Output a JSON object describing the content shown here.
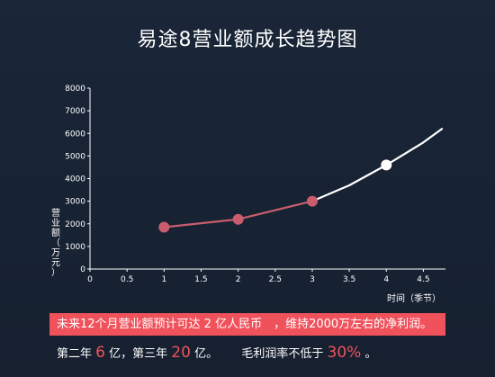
{
  "title": "易途8营业额成长趋势图",
  "chart_data": {
    "type": "line",
    "title": "易途8营业额成长趋势图",
    "xlabel": "时间（季节）",
    "ylabel": "营业额（万元）",
    "xlim": [
      0,
      4.75
    ],
    "ylim": [
      0,
      8000
    ],
    "x_ticks": [
      "0",
      "0.5",
      "1",
      "1.5",
      "2",
      "2.5",
      "3",
      "3.5",
      "4",
      "4.5"
    ],
    "y_ticks": [
      "0",
      "1000",
      "2000",
      "3000",
      "4000",
      "5000",
      "6000",
      "7000",
      "8000"
    ],
    "grid": false,
    "series": [
      {
        "color": "#c85d6e",
        "points": [
          {
            "x": 1,
            "y": 1850
          },
          {
            "x": 2,
            "y": 2200
          },
          {
            "x": 3,
            "y": 3000
          }
        ]
      },
      {
        "color": "#ffffff",
        "points": [
          {
            "x": 3,
            "y": 3000
          },
          {
            "x": 3.5,
            "y": 3700
          },
          {
            "x": 4,
            "y": 4600
          },
          {
            "x": 4.5,
            "y": 5600
          },
          {
            "x": 4.75,
            "y": 6200
          }
        ]
      }
    ],
    "markers": [
      {
        "x": 1,
        "y": 1850,
        "color": "#c85d6e"
      },
      {
        "x": 2,
        "y": 2200,
        "color": "#c85d6e"
      },
      {
        "x": 3,
        "y": 3000,
        "color": "#c85d6e"
      },
      {
        "x": 4,
        "y": 4600,
        "color": "#ffffff"
      }
    ],
    "colors": {
      "axis": "#ffffff",
      "background": "#182334"
    }
  },
  "notes": {
    "line1": "未来12个月营业额预计可达 2 亿人民币　，维持2000万左右的净利润。",
    "year2_prefix": "第二年",
    "year2_value": "6",
    "year2_suffix": "亿，第三年",
    "year3_value": "20",
    "year3_suffix": "亿。",
    "margin_prefix": "毛利润率不低于",
    "margin_value": "30%",
    "margin_suffix": "。",
    "banner_color": "#f0525c"
  }
}
